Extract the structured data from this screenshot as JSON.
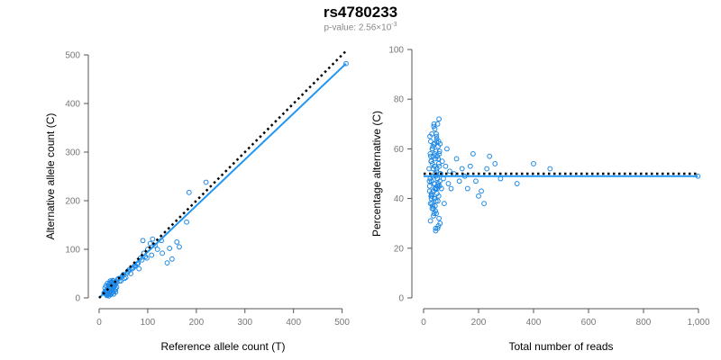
{
  "header": {
    "title": "rs4780233",
    "subtitle_prefix": "p-value: 2.56×10",
    "subtitle_exponent": "-3"
  },
  "colors": {
    "points": "#1e88e5",
    "fit_line": "#2196f3",
    "reference_line": "#000000",
    "axis": "#555555",
    "tick_labels": "#777777"
  },
  "chart_data": [
    {
      "type": "scatter",
      "xlabel": "Reference allele count (T)",
      "ylabel": "Alternative allele count (C)",
      "xlim": [
        0,
        510
      ],
      "ylim": [
        0,
        500
      ],
      "xticks": [
        0,
        100,
        200,
        300,
        400,
        500
      ],
      "yticks": [
        0,
        100,
        200,
        300,
        400,
        500
      ],
      "xtick_labels": [
        "0",
        "100",
        "200",
        "300",
        "400",
        "500"
      ],
      "ytick_labels": [
        "0",
        "100",
        "200",
        "300",
        "400",
        "500"
      ],
      "grid": false,
      "points": {
        "x": [
          10,
          12,
          14,
          15,
          16,
          17,
          18,
          19,
          20,
          21,
          22,
          23,
          24,
          25,
          26,
          27,
          28,
          29,
          30,
          31,
          32,
          33,
          34,
          35,
          12,
          14,
          16,
          18,
          20,
          22,
          24,
          26,
          28,
          30,
          13,
          15,
          17,
          19,
          21,
          23,
          25,
          27,
          29,
          31,
          18,
          22,
          26,
          30,
          34,
          20,
          24,
          28,
          32,
          36,
          40,
          45,
          50,
          55,
          60,
          65,
          70,
          75,
          80,
          85,
          90,
          95,
          100,
          105,
          110,
          115,
          120,
          130,
          140,
          150,
          165,
          180,
          185,
          220,
          35,
          38,
          42,
          48,
          52,
          58,
          62,
          68,
          72,
          78,
          82,
          88,
          92,
          98,
          108,
          128,
          145,
          160,
          508
        ],
        "y": [
          10,
          12,
          8,
          15,
          11,
          18,
          9,
          20,
          13,
          16,
          22,
          14,
          25,
          17,
          19,
          28,
          12,
          21,
          24,
          30,
          15,
          26,
          18,
          33,
          20,
          25,
          5,
          7,
          28,
          30,
          32,
          10,
          35,
          22,
          14,
          8,
          30,
          24,
          18,
          35,
          27,
          12,
          31,
          26,
          6,
          9,
          33,
          8,
          12,
          4,
          7,
          36,
          29,
          22,
          40,
          35,
          48,
          42,
          55,
          50,
          62,
          66,
          71,
          82,
          118,
          85,
          100,
          112,
          121,
          108,
          100,
          92,
          72,
          80,
          105,
          156,
          217,
          238,
          30,
          38,
          35,
          45,
          40,
          52,
          58,
          60,
          65,
          70,
          60,
          78,
          92,
          82,
          88,
          118,
          102,
          115,
          482
        ]
      },
      "fit_line": {
        "x": [
          0,
          508
        ],
        "y": [
          0,
          482
        ]
      },
      "reference_line": {
        "x": [
          0,
          508
        ],
        "y": [
          0,
          508
        ]
      }
    },
    {
      "type": "scatter",
      "xlabel": "Total number of reads",
      "ylabel": "Percentage alternative (C)",
      "xlim": [
        0,
        1000
      ],
      "ylim": [
        0,
        100
      ],
      "xticks": [
        0,
        200,
        400,
        600,
        800,
        1000
      ],
      "yticks": [
        0,
        20,
        40,
        60,
        80,
        100
      ],
      "xtick_labels": [
        "0",
        "200",
        "400",
        "600",
        "800",
        "1,000"
      ],
      "ytick_labels": [
        "0",
        "20",
        "40",
        "60",
        "80",
        "100"
      ],
      "grid": false,
      "points": {
        "x": [
          20,
          22,
          24,
          25,
          26,
          27,
          28,
          29,
          30,
          31,
          32,
          33,
          34,
          35,
          36,
          37,
          38,
          39,
          40,
          41,
          42,
          43,
          44,
          45,
          46,
          47,
          48,
          49,
          50,
          51,
          52,
          53,
          54,
          55,
          56,
          57,
          58,
          59,
          60,
          21,
          23,
          25,
          27,
          29,
          31,
          33,
          35,
          37,
          39,
          41,
          43,
          45,
          47,
          49,
          51,
          53,
          55,
          57,
          59,
          22,
          26,
          30,
          34,
          38,
          42,
          46,
          50,
          54,
          58,
          24,
          28,
          32,
          36,
          40,
          44,
          48,
          52,
          56,
          60,
          38,
          41,
          44,
          47,
          50,
          30,
          35,
          40,
          45,
          50,
          55,
          62,
          65,
          68,
          72,
          75,
          80,
          85,
          90,
          95,
          100,
          110,
          120,
          130,
          140,
          150,
          160,
          170,
          180,
          190,
          200,
          210,
          220,
          230,
          240,
          260,
          280,
          340,
          400,
          460,
          998
        ],
        "y": [
          52,
          45,
          58,
          38,
          63,
          41,
          55,
          47,
          66,
          36,
          60,
          49,
          43,
          57,
          33,
          62,
          46,
          53,
          40,
          68,
          37,
          56,
          44,
          59,
          34,
          51,
          64,
          42,
          48,
          70,
          39,
          61,
          46,
          54,
          32,
          58,
          45,
          50,
          62,
          47,
          65,
          31,
          55,
          42,
          60,
          37,
          52,
          69,
          40,
          58,
          35,
          49,
          63,
          44,
          28,
          56,
          41,
          53,
          47,
          43,
          57,
          38,
          61,
          34,
          50,
          66,
          45,
          29,
          59,
          48,
          40,
          54,
          36,
          62,
          27,
          52,
          45,
          72,
          30,
          70,
          44,
          28,
          65,
          48,
          41,
          52,
          46,
          39,
          57,
          63,
          50,
          44,
          55,
          48,
          38,
          53,
          60,
          46,
          51,
          44,
          50,
          56,
          47,
          52,
          49,
          44,
          53,
          58,
          47,
          41,
          43,
          38,
          52,
          57,
          54,
          48,
          46,
          54,
          52,
          49
        ],
        "note": "percent values"
      },
      "fit_line": {
        "x": [
          0,
          998
        ],
        "y": [
          49,
          49
        ]
      },
      "reference_line": {
        "x": [
          0,
          998
        ],
        "y": [
          50,
          50
        ]
      }
    }
  ]
}
